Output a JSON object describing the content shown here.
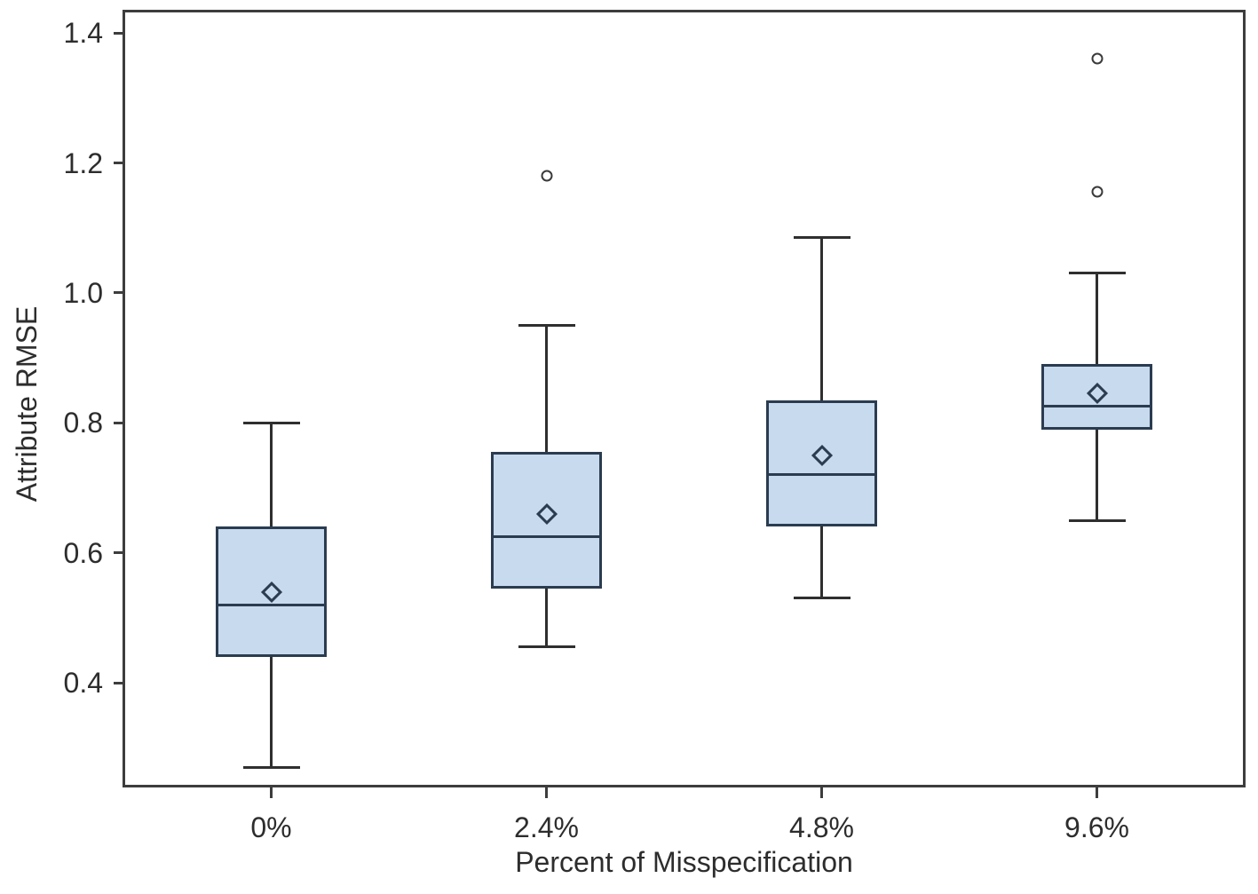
{
  "chart_data": {
    "type": "boxplot",
    "title": "",
    "xlabel": "Percent of Misspecification",
    "ylabel": "Attribute RMSE",
    "categories": [
      "0%",
      "2.4%",
      "4.8%",
      "9.6%"
    ],
    "y_tick_labels": [
      "0.4",
      "0.6",
      "0.8",
      "1.0",
      "1.2",
      "1.4"
    ],
    "y_tick_values": [
      0.4,
      0.6,
      0.8,
      1.0,
      1.2,
      1.4
    ],
    "ylim": [
      0.2415,
      1.433
    ],
    "grid": false,
    "legend": null,
    "series": [
      {
        "category": "0%",
        "whisker_low": 0.27,
        "q1": 0.44,
        "median": 0.52,
        "mean": 0.54,
        "q3": 0.64,
        "whisker_high": 0.8,
        "outliers": []
      },
      {
        "category": "2.4%",
        "whisker_low": 0.455,
        "q1": 0.545,
        "median": 0.625,
        "mean": 0.66,
        "q3": 0.755,
        "whisker_high": 0.95,
        "outliers": [
          1.18
        ]
      },
      {
        "category": "4.8%",
        "whisker_low": 0.53,
        "q1": 0.64,
        "median": 0.72,
        "mean": 0.75,
        "q3": 0.835,
        "whisker_high": 1.085,
        "outliers": []
      },
      {
        "category": "9.6%",
        "whisker_low": 0.65,
        "q1": 0.79,
        "median": 0.825,
        "mean": 0.845,
        "q3": 0.89,
        "whisker_high": 1.03,
        "outliers": [
          1.155,
          1.36
        ]
      }
    ],
    "colors": {
      "box_fill": "#c8daed",
      "box_border": "#2b3c50",
      "median": "#2b3c50",
      "mean_marker": "#2b3c50",
      "whisker": "#2f2f2f",
      "outlier_stroke": "#3a3a3a",
      "frame": "#3d3d3d",
      "text": "#2d2d2d"
    }
  }
}
